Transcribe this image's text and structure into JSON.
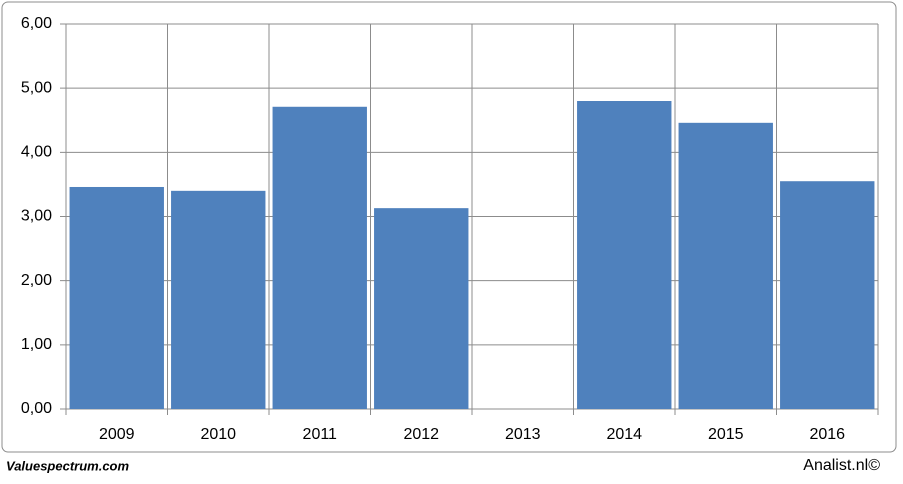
{
  "chart_data": {
    "type": "bar",
    "categories": [
      "2009",
      "2010",
      "2011",
      "2012",
      "2013",
      "2014",
      "2015",
      "2016"
    ],
    "values": [
      3.46,
      3.4,
      4.71,
      3.13,
      null,
      4.8,
      4.46,
      3.55
    ],
    "color": "#4f81bd",
    "ylim": [
      0,
      6
    ],
    "yticks": [
      {
        "value": 0,
        "label": "0,00"
      },
      {
        "value": 1,
        "label": "1,00"
      },
      {
        "value": 2,
        "label": "2,00"
      },
      {
        "value": 3,
        "label": "3,00"
      },
      {
        "value": 4,
        "label": "4,00"
      },
      {
        "value": 5,
        "label": "5,00"
      },
      {
        "value": 6,
        "label": "6,00"
      }
    ],
    "grid": true,
    "source_left": "Valuespectrum.com",
    "source_right": "Analist.nl©"
  }
}
